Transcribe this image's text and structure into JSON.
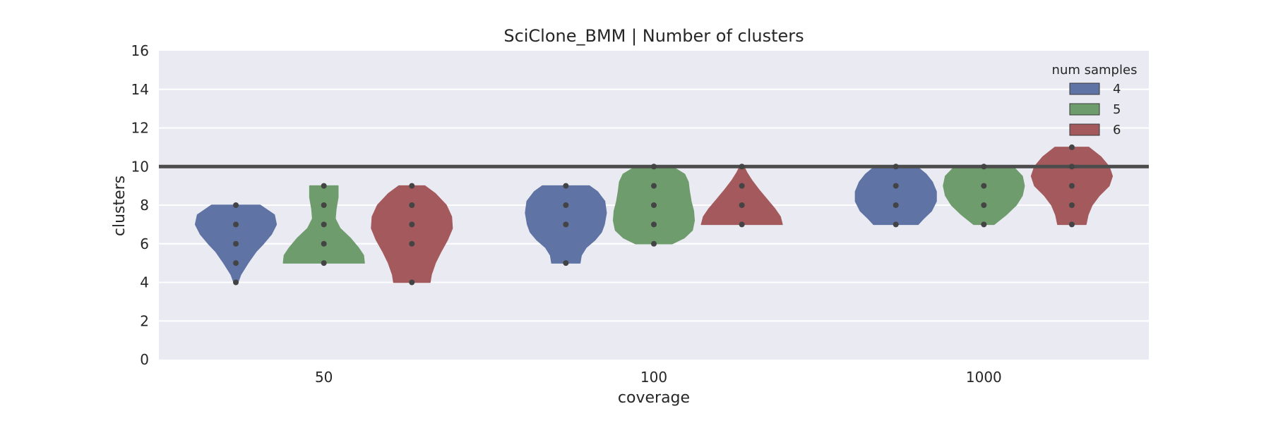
{
  "chart_data": {
    "type": "violin",
    "title": "SciClone_BMM | Number of clusters",
    "xlabel": "coverage",
    "ylabel": "clusters",
    "categories": [
      "50",
      "100",
      "1000"
    ],
    "ylim": [
      0,
      16
    ],
    "yticks": [
      0,
      2,
      4,
      6,
      8,
      10,
      12,
      14,
      16
    ],
    "grid": true,
    "legend": {
      "title": "num samples",
      "position": "top-right"
    },
    "reference_line": {
      "y": 10
    },
    "series": [
      {
        "name": "4",
        "color": "#5f73a4",
        "violins": [
          {
            "category": "50",
            "min": 4,
            "max": 8,
            "points": [
              4,
              5,
              6,
              7,
              8
            ],
            "profile": [
              [
                4,
                0.05
              ],
              [
                4.4,
                0.12
              ],
              [
                5,
                0.3
              ],
              [
                5.6,
                0.5
              ],
              [
                6,
                0.68
              ],
              [
                6.5,
                0.88
              ],
              [
                7,
                1.0
              ],
              [
                7.5,
                0.95
              ],
              [
                8,
                0.6
              ]
            ]
          },
          {
            "category": "100",
            "min": 5,
            "max": 9,
            "points": [
              5,
              7,
              8,
              9
            ],
            "profile": [
              [
                5,
                0.35
              ],
              [
                5.4,
                0.38
              ],
              [
                5.8,
                0.5
              ],
              [
                6.2,
                0.72
              ],
              [
                6.6,
                0.88
              ],
              [
                7,
                0.95
              ],
              [
                7.6,
                1.0
              ],
              [
                8.2,
                0.96
              ],
              [
                8.7,
                0.78
              ],
              [
                9,
                0.58
              ]
            ]
          },
          {
            "category": "1000",
            "min": 7,
            "max": 10,
            "points": [
              7,
              8,
              9,
              10
            ],
            "profile": [
              [
                7,
                0.55
              ],
              [
                7.3,
                0.68
              ],
              [
                7.7,
                0.88
              ],
              [
                8.2,
                1.0
              ],
              [
                8.7,
                1.0
              ],
              [
                9.2,
                0.9
              ],
              [
                9.6,
                0.75
              ],
              [
                10,
                0.52
              ]
            ]
          }
        ]
      },
      {
        "name": "5",
        "color": "#6f9c6d",
        "violins": [
          {
            "category": "50",
            "min": 5,
            "max": 9,
            "points": [
              5,
              6,
              7,
              8,
              9
            ],
            "profile": [
              [
                5,
                1.0
              ],
              [
                5.4,
                0.98
              ],
              [
                5.8,
                0.85
              ],
              [
                6.3,
                0.65
              ],
              [
                6.8,
                0.4
              ],
              [
                7.3,
                0.28
              ],
              [
                7.8,
                0.3
              ],
              [
                8.4,
                0.35
              ],
              [
                9,
                0.35
              ]
            ]
          },
          {
            "category": "100",
            "min": 6,
            "max": 10,
            "points": [
              6,
              7,
              8,
              9,
              10
            ],
            "profile": [
              [
                6,
                0.45
              ],
              [
                6.3,
                0.75
              ],
              [
                6.7,
                0.95
              ],
              [
                7.2,
                1.0
              ],
              [
                7.7,
                0.98
              ],
              [
                8.2,
                0.92
              ],
              [
                8.7,
                0.88
              ],
              [
                9.2,
                0.85
              ],
              [
                9.6,
                0.76
              ],
              [
                10,
                0.45
              ]
            ]
          },
          {
            "category": "1000",
            "min": 7,
            "max": 10,
            "points": [
              7,
              8,
              9,
              10
            ],
            "profile": [
              [
                7,
                0.25
              ],
              [
                7.5,
                0.55
              ],
              [
                8,
                0.8
              ],
              [
                8.5,
                0.95
              ],
              [
                9,
                1.0
              ],
              [
                9.5,
                0.95
              ],
              [
                10,
                0.72
              ]
            ]
          }
        ]
      },
      {
        "name": "6",
        "color": "#a45a5d",
        "violins": [
          {
            "category": "50",
            "min": 4,
            "max": 9,
            "points": [
              4,
              6,
              7,
              8,
              9
            ],
            "profile": [
              [
                4,
                0.45
              ],
              [
                4.4,
                0.48
              ],
              [
                5,
                0.58
              ],
              [
                5.6,
                0.72
              ],
              [
                6.2,
                0.88
              ],
              [
                6.8,
                1.0
              ],
              [
                7.4,
                0.98
              ],
              [
                8,
                0.85
              ],
              [
                8.6,
                0.58
              ],
              [
                9,
                0.32
              ]
            ]
          },
          {
            "category": "100",
            "min": 7,
            "max": 10,
            "points": [
              7,
              8,
              9,
              10
            ],
            "profile": [
              [
                7,
                1.0
              ],
              [
                7.4,
                0.95
              ],
              [
                7.8,
                0.82
              ],
              [
                8.3,
                0.62
              ],
              [
                8.8,
                0.42
              ],
              [
                9.3,
                0.24
              ],
              [
                9.7,
                0.12
              ],
              [
                10,
                0.05
              ]
            ]
          },
          {
            "category": "1000",
            "min": 7,
            "max": 11,
            "points": [
              7,
              8,
              9,
              10,
              11
            ],
            "profile": [
              [
                7,
                0.35
              ],
              [
                7.5,
                0.4
              ],
              [
                8,
                0.5
              ],
              [
                8.5,
                0.68
              ],
              [
                9,
                0.92
              ],
              [
                9.5,
                1.0
              ],
              [
                10,
                0.92
              ],
              [
                10.5,
                0.72
              ],
              [
                11,
                0.42
              ]
            ]
          }
        ]
      }
    ]
  }
}
